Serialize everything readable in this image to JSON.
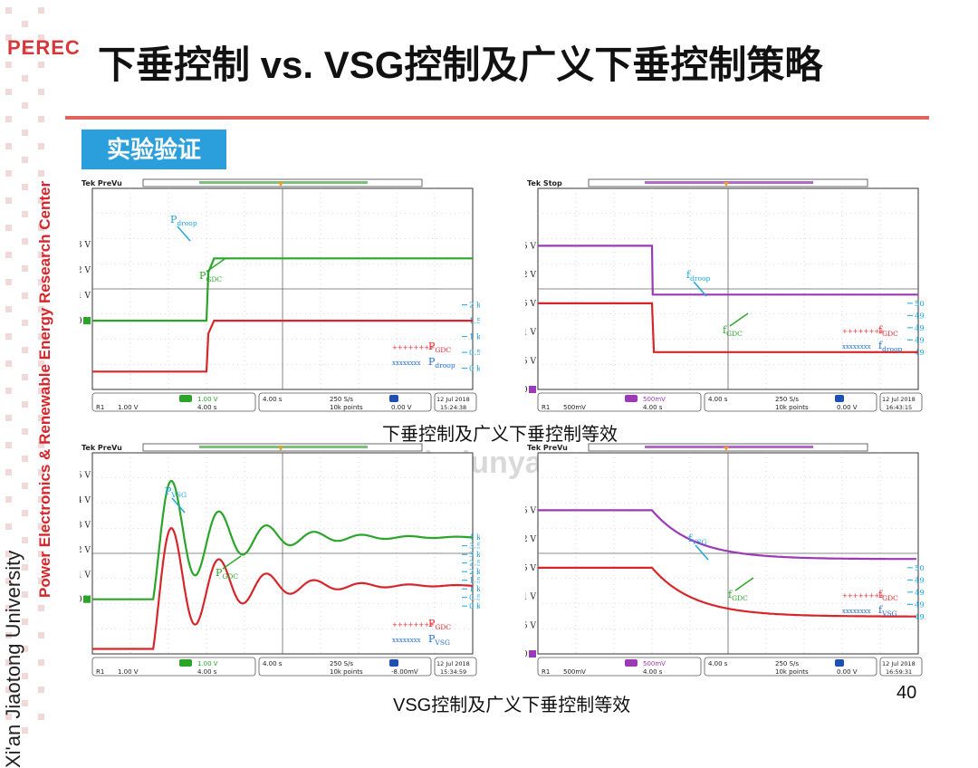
{
  "slide": {
    "logo_text": "PEREC",
    "title": "下垂控制 vs. VSG控制及广义下垂控制策略",
    "badge": "实验验证",
    "side_university": "Xi'an Jiaotong University",
    "side_center": "Power Electronics & Renewable Energy Research Center",
    "caption_top": "下垂控制及广义下垂控制等效",
    "caption_bottom": "VSG控制及广义下垂控制等效",
    "page_number": "40",
    "watermark": "www.niudunyan.com"
  },
  "chart_data": [
    {
      "type": "line",
      "position_label": "top-left",
      "header": "Tek PreVu",
      "y_left_ticks": [
        "3 V",
        "2 V",
        "1 V",
        "0 V"
      ],
      "y_right_ticks": [
        "2 kW",
        "1.5 kW",
        "1 kW",
        "0.5 kW",
        "0 kW"
      ],
      "annotations": [
        {
          "text": "P",
          "sub": "droop"
        },
        {
          "text": "P",
          "sub": "GDC"
        }
      ],
      "legend": [
        {
          "marker": "++++++++",
          "name": "P",
          "sub": "GDC",
          "color": "#e8252b"
        },
        {
          "marker": "xxxxxxxx",
          "name": "P",
          "sub": "droop",
          "color": "#1f6fd0"
        }
      ],
      "series": [
        {
          "name": "P_GDC (green)",
          "color": "#2aa52a",
          "x": [
            0,
            3,
            3.05,
            3.2,
            10
          ],
          "y": [
            0,
            0,
            1.9,
            2.45,
            2.45
          ]
        },
        {
          "name": "P_droop (red)",
          "color": "#d7262b",
          "x": [
            0,
            3,
            3.05,
            3.2,
            10
          ],
          "y": [
            -2,
            -2,
            -0.5,
            0,
            0
          ]
        }
      ],
      "status": {
        "ch4": "1.00 V",
        "time1": "4.00 s",
        "rate": "250 S/s",
        "points": "10k points",
        "trig": "0.00 V",
        "date": "12 Jul 2018",
        "clock": "15:24:38",
        "r1": "1.00 V",
        "r1t": "4.00 s"
      }
    },
    {
      "type": "line",
      "position_label": "top-right",
      "header": "Tek Stop",
      "y_left_ticks": [
        "2.5 V",
        "2 V",
        "1.5 V",
        "1 V",
        "0.5 V",
        "0 V"
      ],
      "y_right_ticks": [
        "50 Hz",
        "49.9 Hz",
        "49.8 Hz",
        "49.7 Hz",
        "49.6 Hz"
      ],
      "annotations": [
        {
          "text": "f",
          "sub": "droop"
        },
        {
          "text": "f",
          "sub": "GDC"
        }
      ],
      "legend": [
        {
          "marker": "++++++++",
          "name": "f",
          "sub": "GDC",
          "color": "#e8252b"
        },
        {
          "marker": "xxxxxxxx",
          "name": "f",
          "sub": "droop",
          "color": "#1f6fd0"
        }
      ],
      "series": [
        {
          "name": "f_droop (purple)",
          "color": "#9b3ab5",
          "x": [
            0,
            3,
            3.02,
            10
          ],
          "y": [
            2.5,
            2.5,
            1.65,
            1.65
          ]
        },
        {
          "name": "f_GDC (red)",
          "color": "#d7262b",
          "x": [
            0,
            3,
            3.05,
            10
          ],
          "y": [
            1.5,
            1.5,
            0.65,
            0.65
          ]
        }
      ],
      "status": {
        "ch3": "500mV",
        "time1": "4.00 s",
        "rate": "250 S/s",
        "points": "10k points",
        "trig": "0.00 V",
        "date": "12 Jul 2018",
        "clock": "16:43:15",
        "r1": "500mV",
        "r1t": "4.00 s"
      }
    },
    {
      "type": "line",
      "position_label": "bottom-left",
      "header": "Tek PreVu",
      "y_left_ticks": [
        "5 V",
        "4 V",
        "3 V",
        "2 V",
        "1 V",
        "0 V"
      ],
      "y_right_ticks": [
        "4 kW",
        "3.5 kW",
        "3 kW",
        "2.5 kW",
        "2 kW",
        "1.5 kW",
        "1 kW",
        "0.5 kW",
        "0 kW"
      ],
      "annotations": [
        {
          "text": "P",
          "sub": "VSG"
        },
        {
          "text": "P",
          "sub": "GDC"
        }
      ],
      "legend": [
        {
          "marker": "++++++++",
          "name": "P",
          "sub": "GDC",
          "color": "#e8252b"
        },
        {
          "marker": "xxxxxxxx",
          "name": "P",
          "sub": "VSG",
          "color": "#1f6fd0"
        }
      ],
      "series": [
        {
          "name": "P_VSG (green)",
          "color": "#2aa52a",
          "damped": true,
          "base": 0,
          "final": 2.5,
          "peak_gain": 0.8,
          "t0": 1.6
        },
        {
          "name": "P_GDC (red)",
          "color": "#d7262b",
          "damped": true,
          "base": -2,
          "final": 0.55,
          "peak_gain": 0.8,
          "t0": 1.6
        }
      ],
      "status": {
        "ch4": "1.00 V",
        "time1": "4.00 s",
        "rate": "250 S/s",
        "points": "10k points",
        "trig": "-8.00mV",
        "date": "12 Jul 2018",
        "clock": "15:34:59",
        "r1": "1.00 V",
        "r1t": "4.00 s"
      }
    },
    {
      "type": "line",
      "position_label": "bottom-right",
      "header": "Tek PreVu",
      "y_left_ticks": [
        "2.5 V",
        "2 V",
        "1.5 V",
        "1 V",
        "0.5 V",
        "0 V"
      ],
      "y_right_ticks": [
        "50 Hz",
        "49.9 Hz",
        "49.8 Hz",
        "49.7 Hz",
        "49.6 Hz"
      ],
      "annotations": [
        {
          "text": "f",
          "sub": "VSG"
        },
        {
          "text": "f",
          "sub": "GDC"
        }
      ],
      "legend": [
        {
          "marker": "++++++++",
          "name": "f",
          "sub": "GDC",
          "color": "#e8252b"
        },
        {
          "marker": "xxxxxxxx",
          "name": "f",
          "sub": "VSG",
          "color": "#1f6fd0"
        }
      ],
      "series": [
        {
          "name": "f_VSG (purple)",
          "color": "#9b3ab5",
          "exp": true,
          "start": 2.5,
          "final": 1.65,
          "t0": 3,
          "tau": 1.1
        },
        {
          "name": "f_GDC (red)",
          "color": "#d7262b",
          "exp": true,
          "start": 1.5,
          "final": 0.65,
          "t0": 3,
          "tau": 1.1
        }
      ],
      "status": {
        "ch3": "500mV",
        "time1": "4.00 s",
        "rate": "250 S/s",
        "points": "10k points",
        "trig": "0.00 V",
        "date": "12 Jul 2018",
        "clock": "16:59:31",
        "r1": "500mV",
        "r1t": "4.00 s"
      }
    }
  ]
}
